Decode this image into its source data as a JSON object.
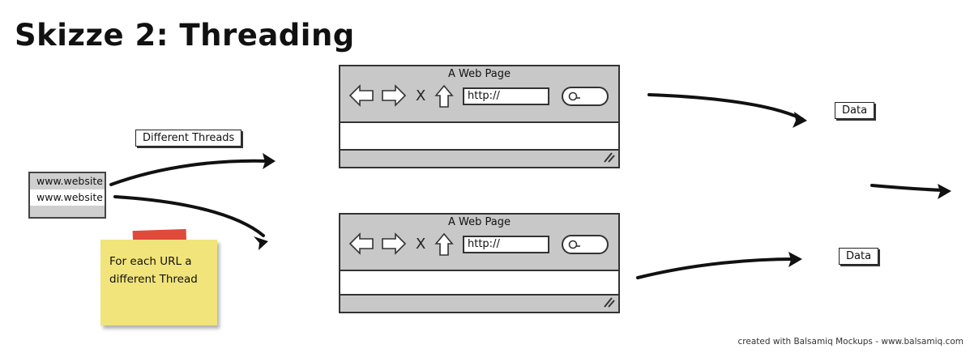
{
  "title": "Skizze 2: Threading",
  "threads_label": "Different Threads",
  "list_items": [
    "www.website",
    "www.website"
  ],
  "sticky_note": {
    "line1": "For each URL a",
    "line2": "different Thread"
  },
  "browsers": [
    {
      "title": "A Web Page",
      "url": "http://",
      "close_glyph": "X"
    },
    {
      "title": "A Web Page",
      "url": "http://",
      "close_glyph": "X"
    }
  ],
  "data_labels": [
    "Data",
    "Data"
  ],
  "footer": "created with Balsamiq Mockups - www.balsamiq.com",
  "colors": {
    "chrome": "#c8c8c8",
    "sticky": "#f1e47a",
    "tape": "#e04a3a"
  }
}
